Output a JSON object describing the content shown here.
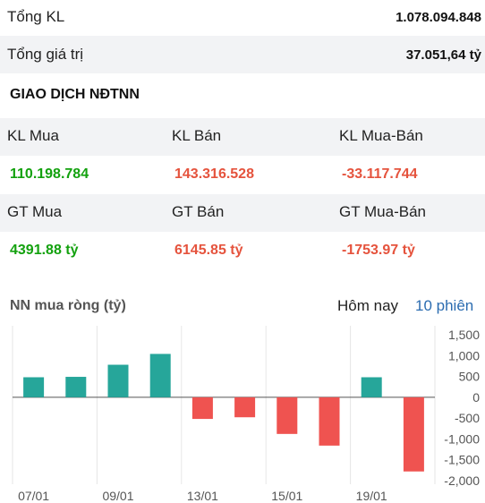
{
  "summary": [
    {
      "label": "Tổng KL",
      "value": "1.078.094.848"
    },
    {
      "label": "Tổng giá trị",
      "value": "37.051,64 tỷ"
    }
  ],
  "foreign": {
    "title": "GIAO DỊCH NĐTNN",
    "kl_mua_label": "KL Mua",
    "kl_ban_label": "KL Bán",
    "kl_net_label": "KL Mua-Bán",
    "kl_mua_value": "110.198.784",
    "kl_ban_value": "143.316.528",
    "kl_net_value": "-33.117.744",
    "gt_mua_label": "GT Mua",
    "gt_ban_label": "GT Bán",
    "gt_net_label": "GT Mua-Bán",
    "gt_mua_value": "4391.88 tỷ",
    "gt_ban_value": "6145.85 tỷ",
    "gt_net_value": "-1753.97 tỷ"
  },
  "colors": {
    "positive": "#13a10e",
    "negative": "#e5533d",
    "bar_up": "#26a69a",
    "bar_down": "#ef5350",
    "link": "#2b6cb0"
  },
  "chart": {
    "title": "NN mua ròng (tỷ)",
    "tab_today": "Hôm nay",
    "tab_10": "10 phiên"
  },
  "chart_data": {
    "type": "bar",
    "values": [
      480,
      490,
      780,
      1040,
      -520,
      -480,
      -880,
      -1160,
      480,
      -1780
    ],
    "y_ticks": [
      "1,500",
      "1,000",
      "500",
      "0",
      "-500",
      "-1,000",
      "-1,500",
      "-2,000"
    ],
    "x_tick_labels": [
      "07/01",
      "09/01",
      "13/01",
      "15/01",
      "19/01"
    ],
    "ylim": [
      -2000,
      1500
    ],
    "grid": true,
    "colors": {
      "up": "#26a69a",
      "down": "#ef5350"
    }
  }
}
